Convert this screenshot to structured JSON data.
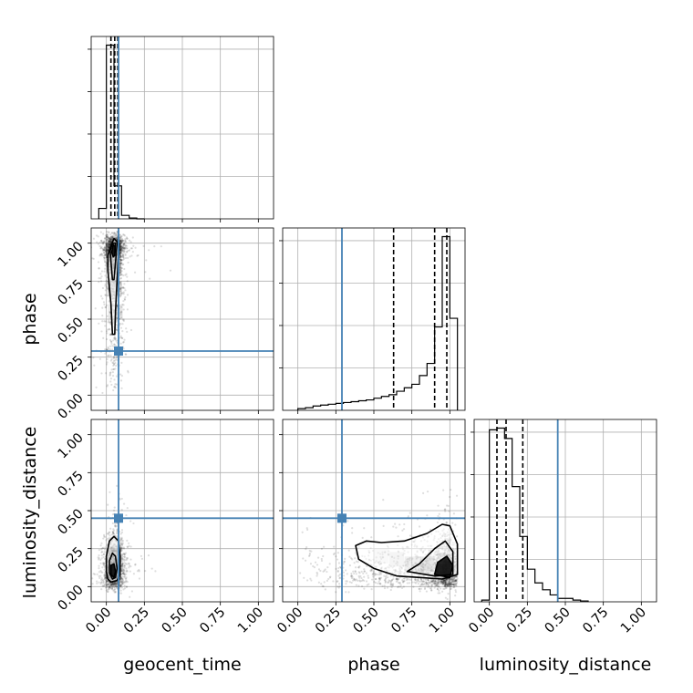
{
  "chart_data": {
    "type": "corner",
    "parameters": [
      "geocent_time",
      "phase",
      "luminosity_distance"
    ],
    "axis_labels": {
      "x": [
        "geocent_time",
        "phase",
        "luminosity_distance"
      ],
      "y": [
        "",
        "phase",
        "luminosity_distance"
      ]
    },
    "tick_labels": [
      "0.00",
      "0.25",
      "0.50",
      "0.75",
      "1.00"
    ],
    "axis_range": [
      -0.1,
      1.1
    ],
    "grid": true,
    "injection": {
      "geocent_time": 0.08,
      "phase": 0.29,
      "luminosity_distance": 0.45
    },
    "injection_color": "#4682b4",
    "point_color": "#000000",
    "quantiles": {
      "geocent_time": [
        0.03,
        0.055,
        0.075
      ],
      "phase": [
        0.63,
        0.9,
        0.98
      ],
      "luminosity_distance": [
        0.05,
        0.11,
        0.22
      ]
    },
    "histograms": {
      "geocent_time": {
        "edges": [
          -0.05,
          0.0,
          0.05,
          0.1,
          0.15,
          0.2,
          0.25
        ],
        "counts": [
          0.06,
          1.0,
          0.19,
          0.02,
          0.005,
          0.0
        ]
      },
      "phase": {
        "edges": [
          0.0,
          0.05,
          0.1,
          0.15,
          0.2,
          0.25,
          0.3,
          0.35,
          0.4,
          0.45,
          0.5,
          0.55,
          0.6,
          0.65,
          0.7,
          0.75,
          0.8,
          0.85,
          0.9,
          0.95,
          1.0,
          1.05
        ],
        "counts": [
          0.01,
          0.015,
          0.025,
          0.03,
          0.035,
          0.04,
          0.045,
          0.05,
          0.055,
          0.06,
          0.07,
          0.08,
          0.09,
          0.11,
          0.13,
          0.15,
          0.2,
          0.27,
          0.48,
          1.0,
          0.53
        ]
      },
      "luminosity_distance": {
        "edges": [
          -0.05,
          0.0,
          0.05,
          0.1,
          0.15,
          0.2,
          0.25,
          0.3,
          0.35,
          0.4,
          0.45,
          0.5,
          0.55,
          0.6,
          0.65
        ],
        "counts": [
          0.01,
          1.0,
          1.01,
          0.95,
          0.67,
          0.38,
          0.19,
          0.11,
          0.07,
          0.04,
          0.02,
          0.02,
          0.01,
          0.005
        ]
      }
    },
    "contours": {
      "geocent_time|phase": [
        [
          [
            0.01,
            0.92
          ],
          [
            0.03,
            0.98
          ],
          [
            0.05,
            1.03
          ],
          [
            0.07,
            1.01
          ],
          [
            0.08,
            0.93
          ],
          [
            0.07,
            0.75
          ],
          [
            0.06,
            0.55
          ],
          [
            0.055,
            0.4
          ],
          [
            0.04,
            0.4
          ],
          [
            0.03,
            0.6
          ],
          [
            0.01,
            0.82
          ]
        ],
        [
          [
            0.025,
            0.95
          ],
          [
            0.04,
            1.0
          ],
          [
            0.06,
            1.0
          ],
          [
            0.065,
            0.93
          ],
          [
            0.05,
            0.76
          ],
          [
            0.04,
            0.76
          ],
          [
            0.03,
            0.88
          ]
        ],
        [
          [
            0.035,
            0.94
          ],
          [
            0.045,
            0.99
          ],
          [
            0.058,
            0.98
          ],
          [
            0.055,
            0.92
          ],
          [
            0.045,
            0.91
          ]
        ]
      ],
      "geocent_time|luminosity_distance": [
        [
          [
            0.0,
            0.1
          ],
          [
            0.0,
            0.2
          ],
          [
            0.02,
            0.3
          ],
          [
            0.05,
            0.33
          ],
          [
            0.08,
            0.3
          ],
          [
            0.09,
            0.2
          ],
          [
            0.09,
            0.08
          ],
          [
            0.07,
            0.04
          ],
          [
            0.03,
            0.03
          ],
          [
            0.01,
            0.05
          ]
        ],
        [
          [
            0.02,
            0.09
          ],
          [
            0.02,
            0.17
          ],
          [
            0.04,
            0.22
          ],
          [
            0.06,
            0.2
          ],
          [
            0.07,
            0.12
          ],
          [
            0.06,
            0.06
          ],
          [
            0.04,
            0.05
          ]
        ],
        [
          [
            0.03,
            0.08
          ],
          [
            0.03,
            0.14
          ],
          [
            0.05,
            0.15
          ],
          [
            0.06,
            0.1
          ],
          [
            0.05,
            0.06
          ]
        ]
      ],
      "phase|luminosity_distance": [
        [
          [
            0.38,
            0.27
          ],
          [
            0.4,
            0.18
          ],
          [
            0.5,
            0.12
          ],
          [
            0.65,
            0.07
          ],
          [
            0.8,
            0.06
          ],
          [
            0.95,
            0.05
          ],
          [
            1.05,
            0.08
          ],
          [
            1.05,
            0.28
          ],
          [
            1.0,
            0.4
          ],
          [
            0.95,
            0.41
          ],
          [
            0.85,
            0.35
          ],
          [
            0.7,
            0.3
          ],
          [
            0.55,
            0.29
          ],
          [
            0.45,
            0.3
          ]
        ],
        [
          [
            0.72,
            0.1
          ],
          [
            0.9,
            0.07
          ],
          [
            1.02,
            0.08
          ],
          [
            1.02,
            0.23
          ],
          [
            0.97,
            0.3
          ],
          [
            0.9,
            0.25
          ],
          [
            0.8,
            0.15
          ]
        ],
        [
          [
            0.9,
            0.08
          ],
          [
            1.0,
            0.06
          ],
          [
            1.02,
            0.14
          ],
          [
            0.98,
            0.2
          ],
          [
            0.92,
            0.16
          ]
        ]
      ]
    },
    "density_cores": {
      "geocent_time|phase": [
        [
          0.045,
          0.95,
          0.9
        ],
        [
          0.05,
          0.85,
          0.5
        ],
        [
          0.055,
          0.7,
          0.35
        ],
        [
          0.06,
          0.55,
          0.2
        ]
      ],
      "geocent_time|luminosity_distance": [
        [
          0.045,
          0.1,
          0.95
        ],
        [
          0.05,
          0.2,
          0.45
        ],
        [
          0.06,
          0.28,
          0.2
        ]
      ],
      "phase|luminosity_distance": [
        [
          0.95,
          0.1,
          0.95
        ],
        [
          0.85,
          0.15,
          0.45
        ],
        [
          0.75,
          0.15,
          0.3
        ],
        [
          0.65,
          0.18,
          0.2
        ],
        [
          0.55,
          0.2,
          0.12
        ]
      ]
    },
    "scatter_clouds": {
      "geocent_time|phase": {
        "n": 1600,
        "x_center": 0.055,
        "x_spread": 0.035,
        "y_dist": "phase"
      },
      "geocent_time|luminosity_distance": {
        "n": 1300,
        "x_center": 0.055,
        "x_spread": 0.035,
        "y_dist": "luminosity_distance"
      },
      "phase|luminosity_distance": {
        "n": 1800,
        "x_dist": "phase",
        "y_dist": "luminosity_distance"
      }
    }
  }
}
